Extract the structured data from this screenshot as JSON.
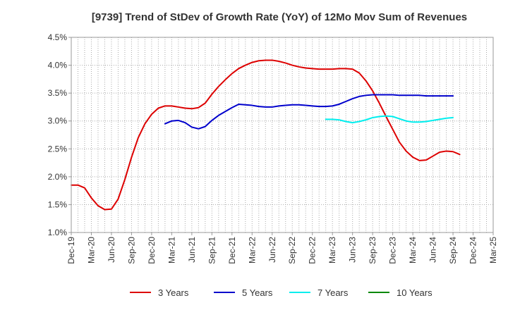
{
  "chart_data": {
    "type": "line",
    "title": "[9739]  Trend of StDev of Growth Rate (YoY) of 12Mo Mov Sum of Revenues",
    "xlabel": "",
    "ylabel": "",
    "ylim": [
      1.0,
      4.5
    ],
    "y_ticks": [
      "1.0%",
      "1.5%",
      "2.0%",
      "2.5%",
      "3.0%",
      "3.5%",
      "4.0%",
      "4.5%"
    ],
    "y_tick_values": [
      1.0,
      1.5,
      2.0,
      2.5,
      3.0,
      3.5,
      4.0,
      4.5
    ],
    "x_ticks": [
      "Dec-19",
      "Mar-20",
      "Jun-20",
      "Sep-20",
      "Dec-20",
      "Mar-21",
      "Jun-21",
      "Sep-21",
      "Dec-21",
      "Mar-22",
      "Jun-22",
      "Sep-22",
      "Dec-22",
      "Mar-23",
      "Jun-23",
      "Sep-23",
      "Dec-23",
      "Mar-24",
      "Jun-24",
      "Sep-24",
      "Dec-24",
      "Mar-25"
    ],
    "grid": true,
    "legend_position": "bottom",
    "series": [
      {
        "name": "3 Years",
        "color": "#dd0000",
        "start_index": 0,
        "values": [
          1.85,
          1.85,
          1.8,
          1.62,
          1.48,
          1.41,
          1.42,
          1.6,
          1.95,
          2.35,
          2.7,
          2.95,
          3.12,
          3.23,
          3.27,
          3.27,
          3.25,
          3.23,
          3.22,
          3.24,
          3.32,
          3.48,
          3.62,
          3.74,
          3.85,
          3.94,
          4.0,
          4.05,
          4.08,
          4.09,
          4.09,
          4.07,
          4.04,
          4.0,
          3.97,
          3.95,
          3.94,
          3.93,
          3.93,
          3.93,
          3.94,
          3.94,
          3.93,
          3.86,
          3.72,
          3.54,
          3.32,
          3.08,
          2.85,
          2.62,
          2.46,
          2.35,
          2.29,
          2.3,
          2.37,
          2.44,
          2.46,
          2.45,
          2.4
        ]
      },
      {
        "name": "5 Years",
        "color": "#0000cc",
        "start_index": 14,
        "values": [
          2.95,
          3.0,
          3.01,
          2.97,
          2.89,
          2.86,
          2.9,
          3.01,
          3.1,
          3.17,
          3.24,
          3.3,
          3.29,
          3.28,
          3.26,
          3.25,
          3.25,
          3.27,
          3.28,
          3.29,
          3.29,
          3.28,
          3.27,
          3.26,
          3.26,
          3.27,
          3.3,
          3.35,
          3.4,
          3.44,
          3.46,
          3.47,
          3.47,
          3.47,
          3.47,
          3.46,
          3.46,
          3.46,
          3.46,
          3.45,
          3.45,
          3.45,
          3.45,
          3.45
        ]
      },
      {
        "name": "7 Years",
        "color": "#00eeee",
        "start_index": 38,
        "values": [
          3.03,
          3.03,
          3.02,
          2.99,
          2.97,
          2.99,
          3.02,
          3.06,
          3.08,
          3.09,
          3.08,
          3.04,
          3.0,
          2.98,
          2.98,
          2.99,
          3.01,
          3.03,
          3.05,
          3.06
        ]
      },
      {
        "name": "10 Years",
        "color": "#008800",
        "start_index": 0,
        "values": []
      }
    ]
  }
}
